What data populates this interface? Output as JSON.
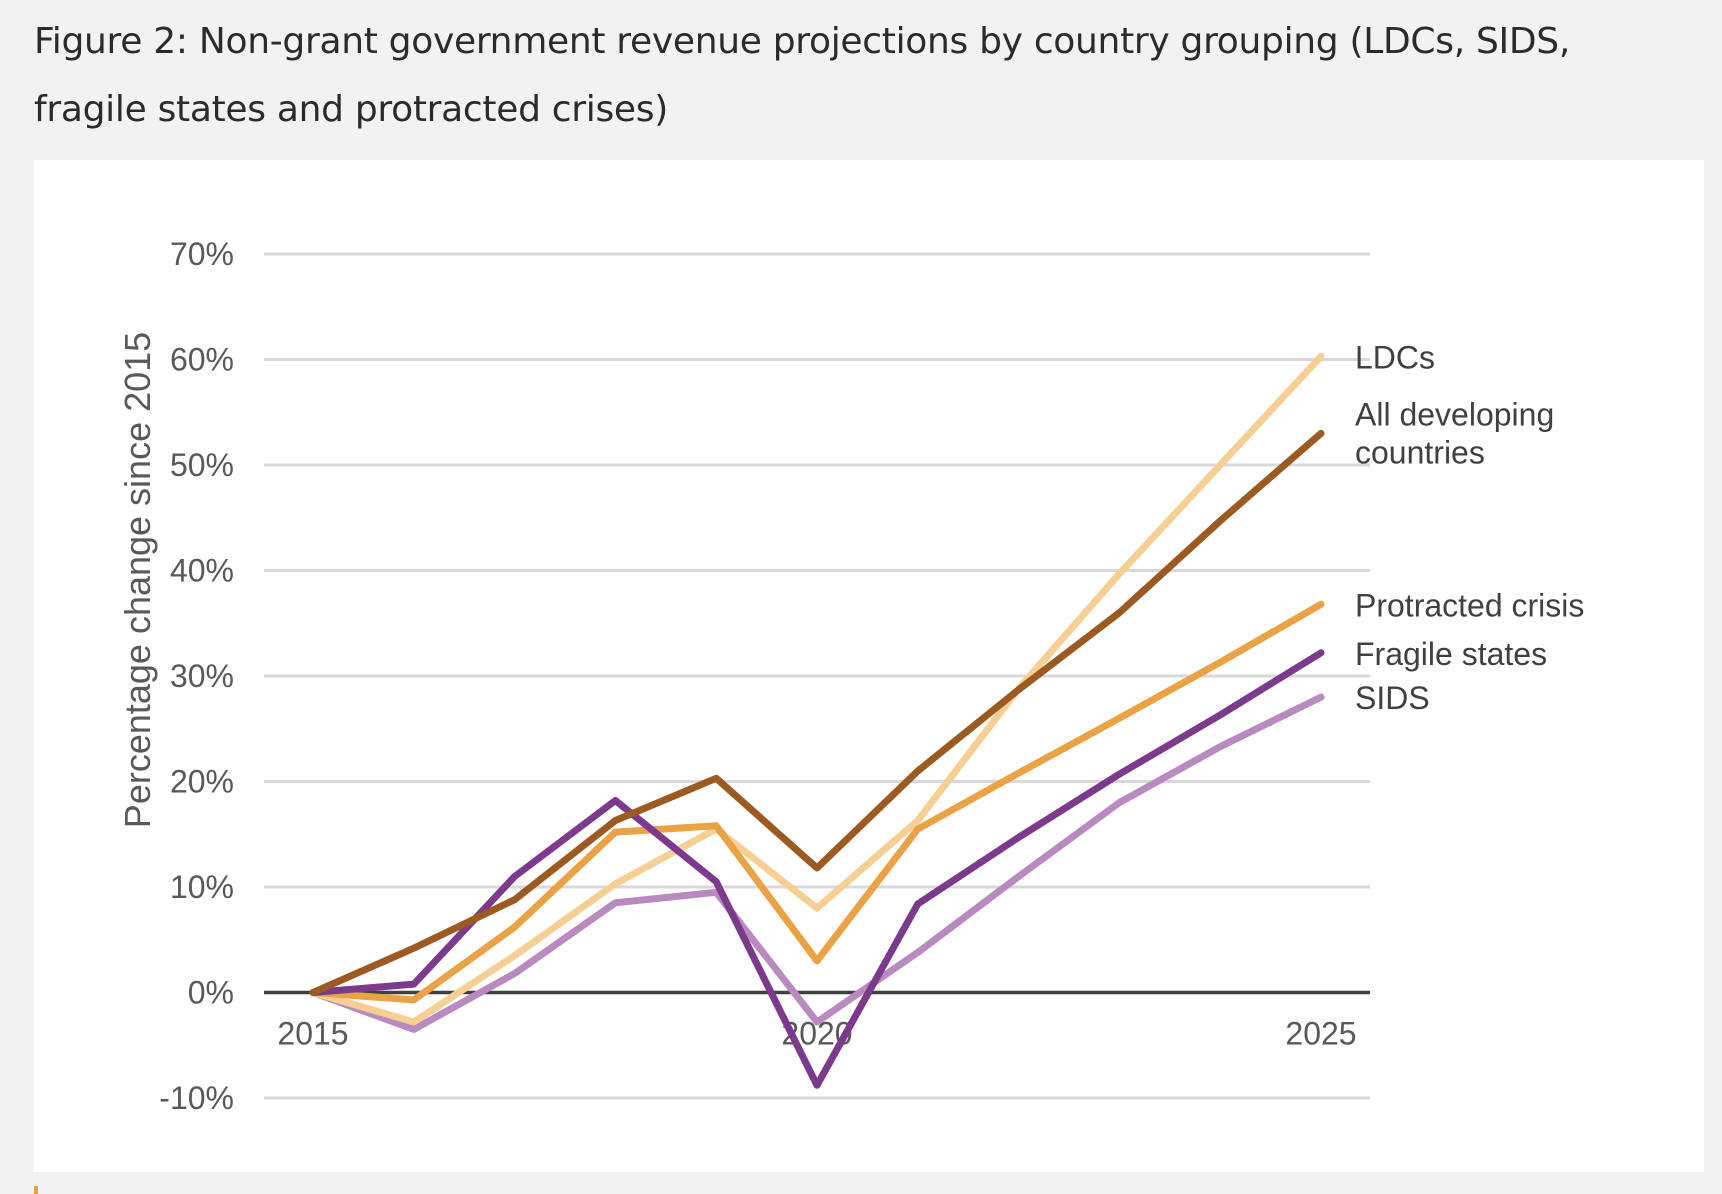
{
  "figure": {
    "title": "Figure 2: Non-grant government revenue projections by country grouping (LDCs, SIDS, fragile states and protracted crises)"
  },
  "chart_data": {
    "type": "line",
    "title": "",
    "xlabel": "",
    "ylabel": "Percentage change since 2015",
    "x": [
      2015,
      2016,
      2017,
      2018,
      2019,
      2020,
      2021,
      2022,
      2023,
      2024,
      2025
    ],
    "x_ticks": [
      {
        "value": 2015,
        "label": "2015"
      },
      {
        "value": 2020,
        "label": "2020"
      },
      {
        "value": 2025,
        "label": "2025"
      }
    ],
    "y_ticks": [
      {
        "value": -10,
        "label": "-10%"
      },
      {
        "value": 0,
        "label": "0%"
      },
      {
        "value": 10,
        "label": "10%"
      },
      {
        "value": 20,
        "label": "20%"
      },
      {
        "value": 30,
        "label": "30%"
      },
      {
        "value": 40,
        "label": "40%"
      },
      {
        "value": 50,
        "label": "50%"
      },
      {
        "value": 60,
        "label": "60%"
      },
      {
        "value": 70,
        "label": "70%"
      }
    ],
    "ylim": [
      -10,
      70
    ],
    "xlim": [
      2015,
      2025
    ],
    "grid": "horizontal",
    "legend": "direct labels at right end of lines",
    "series": [
      {
        "name": "SIDS",
        "label_lines": [
          "SIDS"
        ],
        "color": "#b88abf",
        "values": [
          0,
          -3.5,
          1.8,
          8.5,
          9.5,
          -2.8,
          3.8,
          11,
          18,
          23.3,
          28
        ]
      },
      {
        "name": "LDCs",
        "label_lines": [
          "LDCs"
        ],
        "color": "#f5cf94",
        "values": [
          0,
          -2.8,
          3.5,
          10.3,
          15.5,
          8,
          16.3,
          28.8,
          39.7,
          50,
          60.3
        ]
      },
      {
        "name": "Protracted crisis",
        "label_lines": [
          "Protracted crisis"
        ],
        "color": "#e9a245",
        "values": [
          0,
          -0.7,
          6.2,
          15.2,
          15.8,
          3,
          15.5,
          20.8,
          26,
          31.3,
          36.8
        ]
      },
      {
        "name": "Fragile states",
        "label_lines": [
          "Fragile states"
        ],
        "color": "#7b3a8c",
        "values": [
          0,
          0.8,
          11,
          18.2,
          10.5,
          -8.8,
          8.4,
          14.7,
          20.7,
          26.3,
          32.2
        ]
      },
      {
        "name": "All developing countries",
        "label_lines": [
          "All developing",
          "countries"
        ],
        "color": "#9a5a22",
        "values": [
          0,
          4.2,
          8.8,
          16.3,
          20.3,
          11.8,
          21,
          28.7,
          36,
          44.7,
          53
        ]
      }
    ]
  }
}
